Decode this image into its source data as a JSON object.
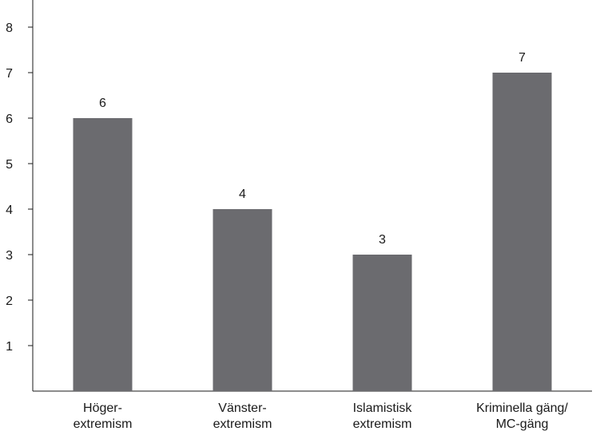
{
  "chart_data": {
    "type": "bar",
    "categories": [
      [
        "Höger-",
        "extremism"
      ],
      [
        "Vänster-",
        "extremism"
      ],
      [
        "Islamistisk",
        "extremism"
      ],
      [
        "Kriminella gäng/",
        "MC-gäng"
      ]
    ],
    "values": [
      6,
      4,
      3,
      7
    ],
    "data_labels": [
      "6",
      "4",
      "3",
      "7"
    ],
    "y_ticks": [
      "1",
      "2",
      "3",
      "4",
      "5",
      "6",
      "7",
      "8"
    ],
    "ylim": [
      0,
      8.5
    ],
    "grid": false,
    "legend": "none",
    "title": "",
    "xlabel": "",
    "ylabel": "",
    "colors": {
      "bar": "#6b6b6f",
      "axis": "#1a1a1a",
      "text": "#1a1a1a"
    }
  }
}
